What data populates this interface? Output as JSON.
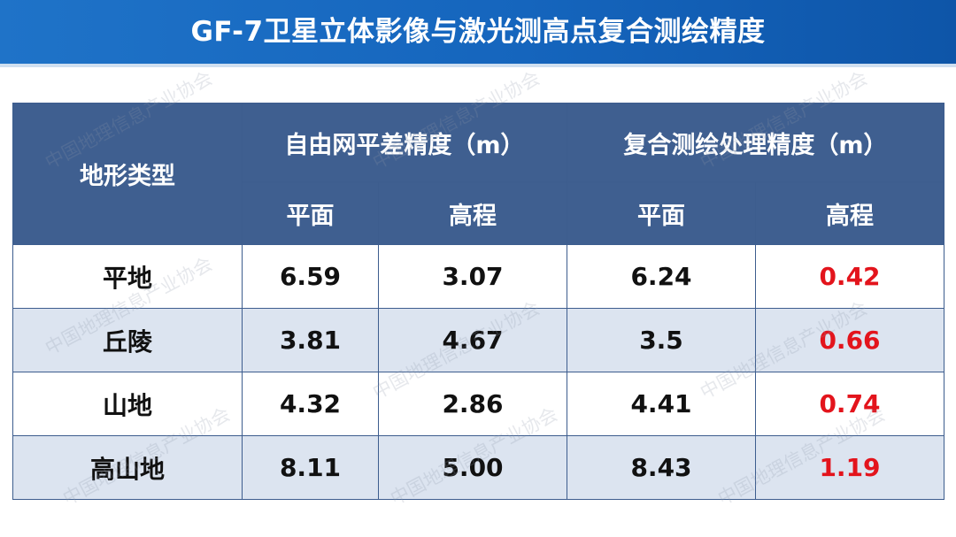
{
  "header": {
    "title": "GF-7卫星立体影像与激光测高点复合测绘精度"
  },
  "table": {
    "terrain_header": "地形类型",
    "group_headers": [
      "自由网平差精度（m）",
      "复合测绘处理精度（m）"
    ],
    "sub_headers": [
      "平面",
      "高程",
      "平面",
      "高程"
    ],
    "rows": [
      [
        "平地",
        "6.59",
        "3.07",
        "6.24",
        "0.42"
      ],
      [
        "丘陵",
        "3.81",
        "4.67",
        "3.5",
        "0.66"
      ],
      [
        "山地",
        "4.32",
        "2.86",
        "4.41",
        "0.74"
      ],
      [
        "高山地",
        "8.11",
        "5.00",
        "8.43",
        "1.19"
      ]
    ]
  },
  "watermark": "中国地理信息产业协会"
}
